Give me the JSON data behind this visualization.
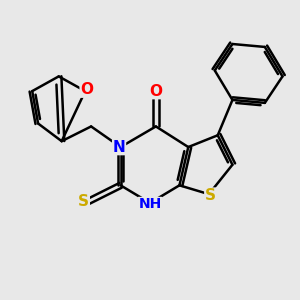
{
  "background_color": "#e8e8e8",
  "atom_colors": {
    "C": "#000000",
    "N": "#0000ff",
    "O": "#ff0000",
    "S": "#ccaa00",
    "H": "#000000"
  },
  "bond_color": "#000000",
  "bond_width": 1.8,
  "figsize": [
    3.0,
    3.0
  ],
  "dpi": 100
}
